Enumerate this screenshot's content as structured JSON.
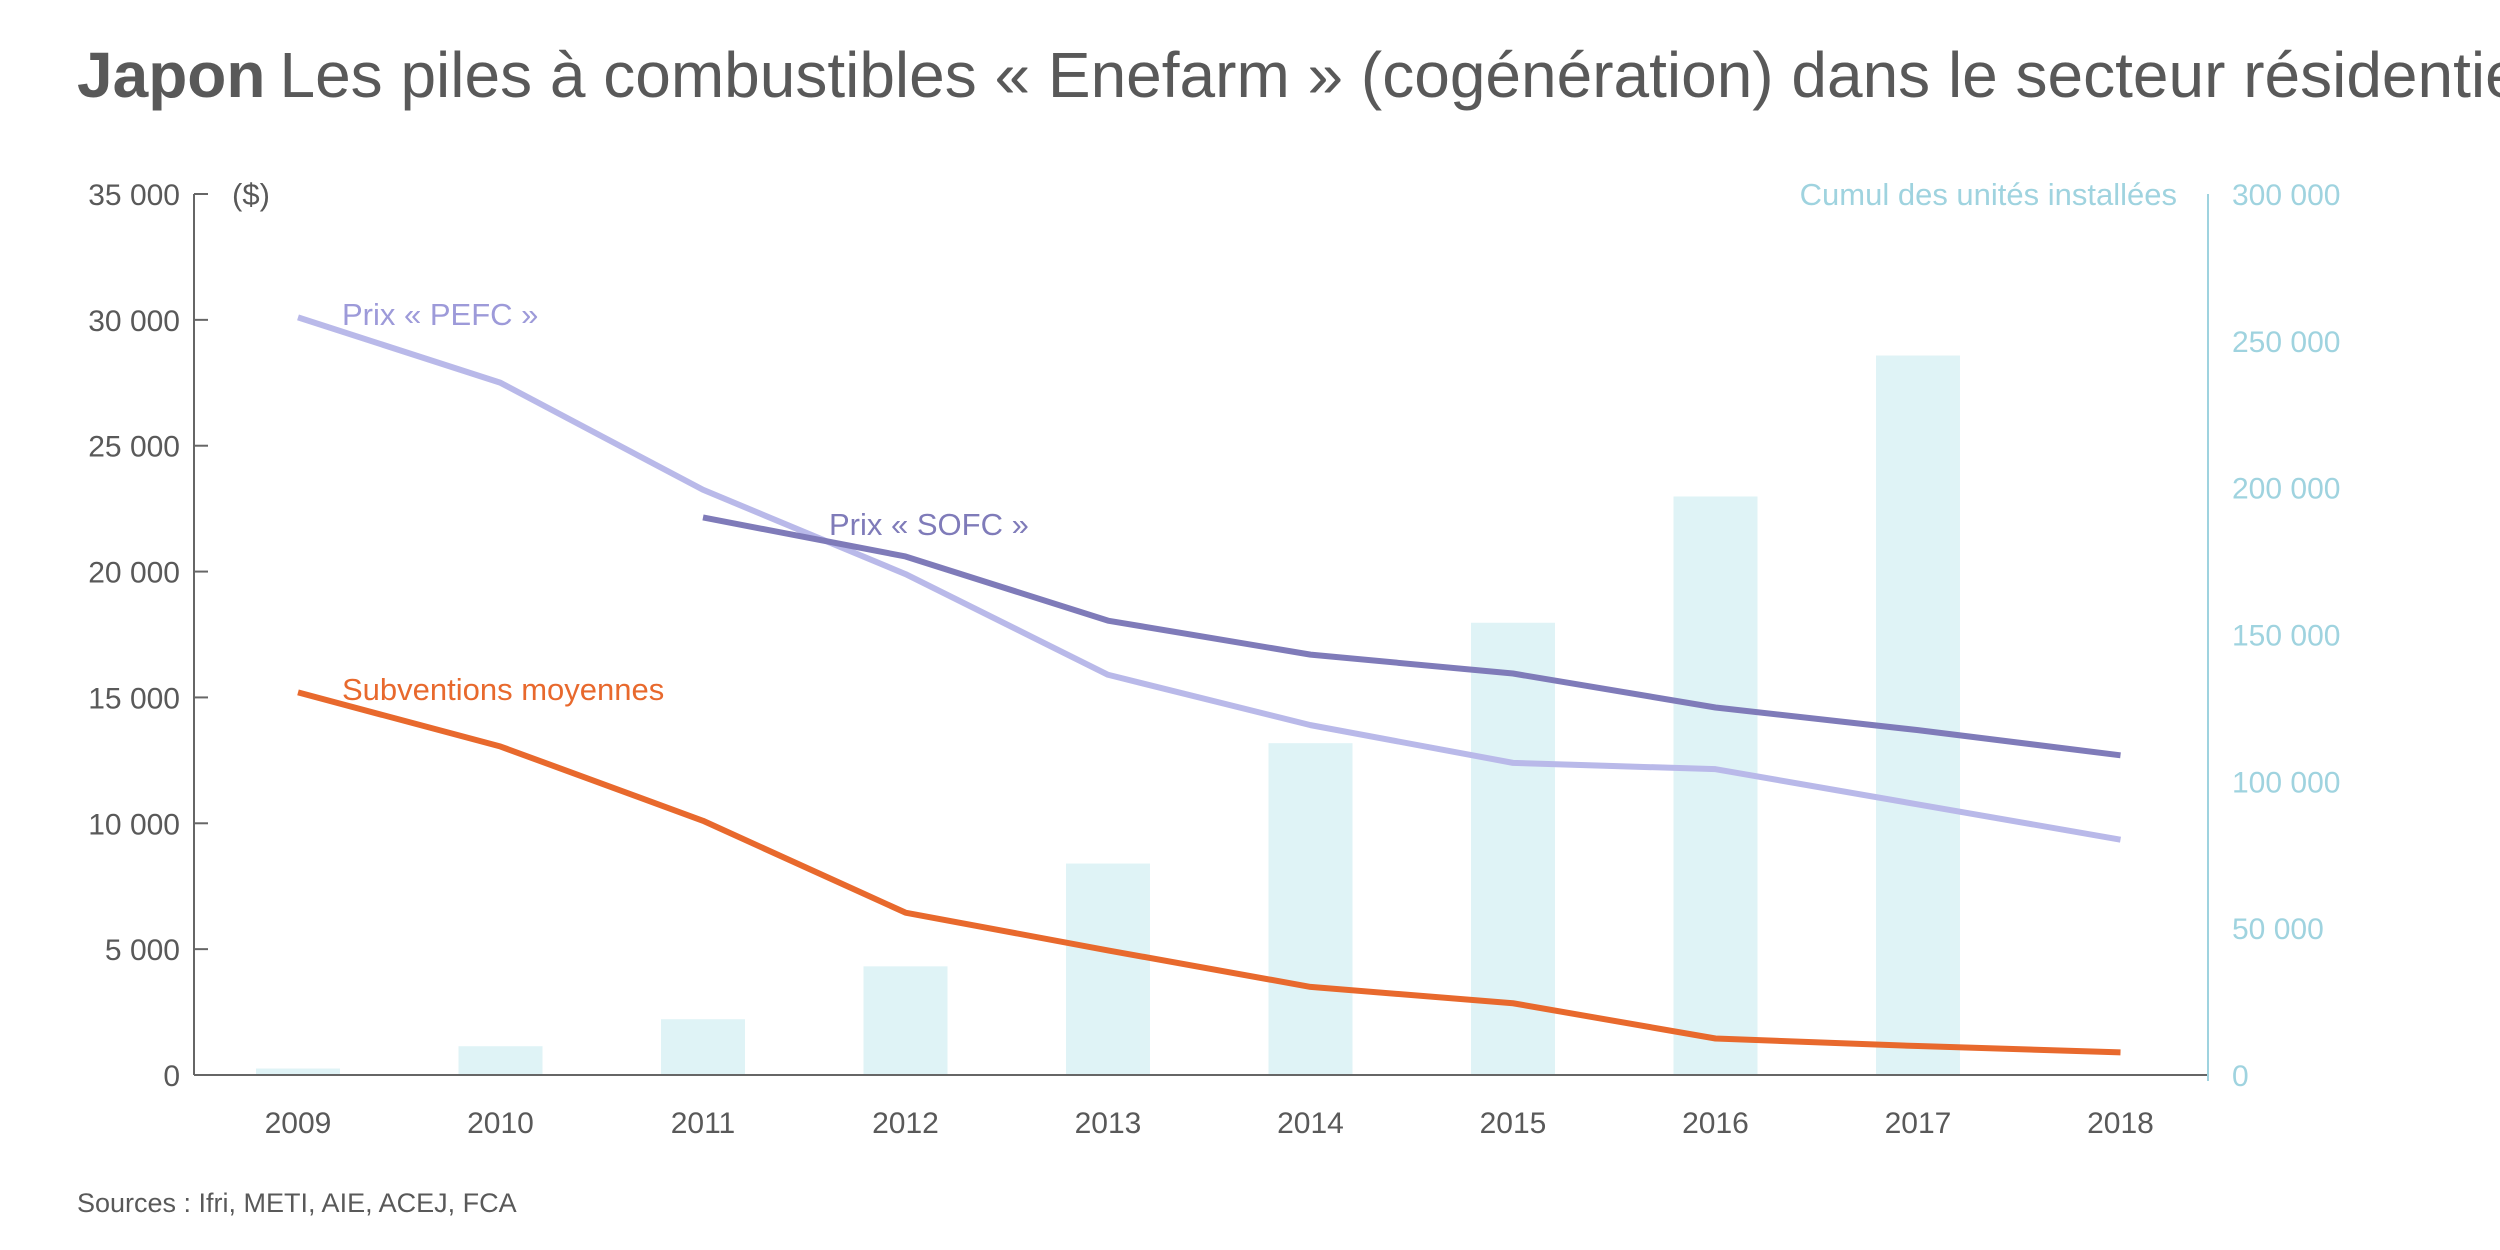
{
  "title": {
    "bold": "Japon",
    "rest": "Les piles à combustibles « Enefarm » (cogénération) dans le secteur résidentiel"
  },
  "source": "Sources : Ifri, METI, AIE, ACEJ, FCA",
  "chart_data": {
    "type": "bar+line",
    "categories": [
      "2009",
      "2010",
      "2011",
      "2012",
      "2013",
      "2014",
      "2015",
      "2016",
      "2017",
      "2018"
    ],
    "left_axis": {
      "label": "($)",
      "range": [
        0,
        35000
      ],
      "ticks": [
        0,
        5000,
        10000,
        15000,
        20000,
        25000,
        30000,
        35000
      ],
      "tick_labels": [
        "0",
        "5 000",
        "10 000",
        "15 000",
        "20 000",
        "25 000",
        "30 000",
        "35 000"
      ]
    },
    "right_axis": {
      "label": "Cumul des unités installées",
      "range": [
        0,
        300000
      ],
      "ticks": [
        0,
        50000,
        100000,
        150000,
        200000,
        250000,
        300000
      ],
      "tick_labels": [
        "0",
        "50 000",
        "100 000",
        "150 000",
        "200 000",
        "250 000",
        "300 000"
      ]
    },
    "bars": {
      "name": "Cumul des unités installées",
      "axis": "right",
      "color": "#dff3f6",
      "values": [
        2200,
        9800,
        19000,
        37000,
        72000,
        113000,
        154000,
        197000,
        245000,
        null
      ]
    },
    "lines": [
      {
        "name": "Prix « PEFC »",
        "axis": "left",
        "color": "#b9b9e9",
        "values": [
          30100,
          27500,
          23250,
          19900,
          15900,
          13900,
          12400,
          12150,
          10750,
          9350
        ]
      },
      {
        "name": "Prix « SOFC »",
        "axis": "left",
        "color": "#7f7bb9",
        "values": [
          null,
          null,
          22150,
          20600,
          18050,
          16700,
          15950,
          14600,
          13700,
          12700
        ]
      },
      {
        "name": "Subventions moyennes",
        "axis": "left",
        "color": "#e8692d",
        "values": [
          15200,
          13050,
          10100,
          6450,
          4950,
          3500,
          2850,
          1450,
          1150,
          900
        ]
      }
    ],
    "grid": false,
    "legend": "inline labels"
  }
}
